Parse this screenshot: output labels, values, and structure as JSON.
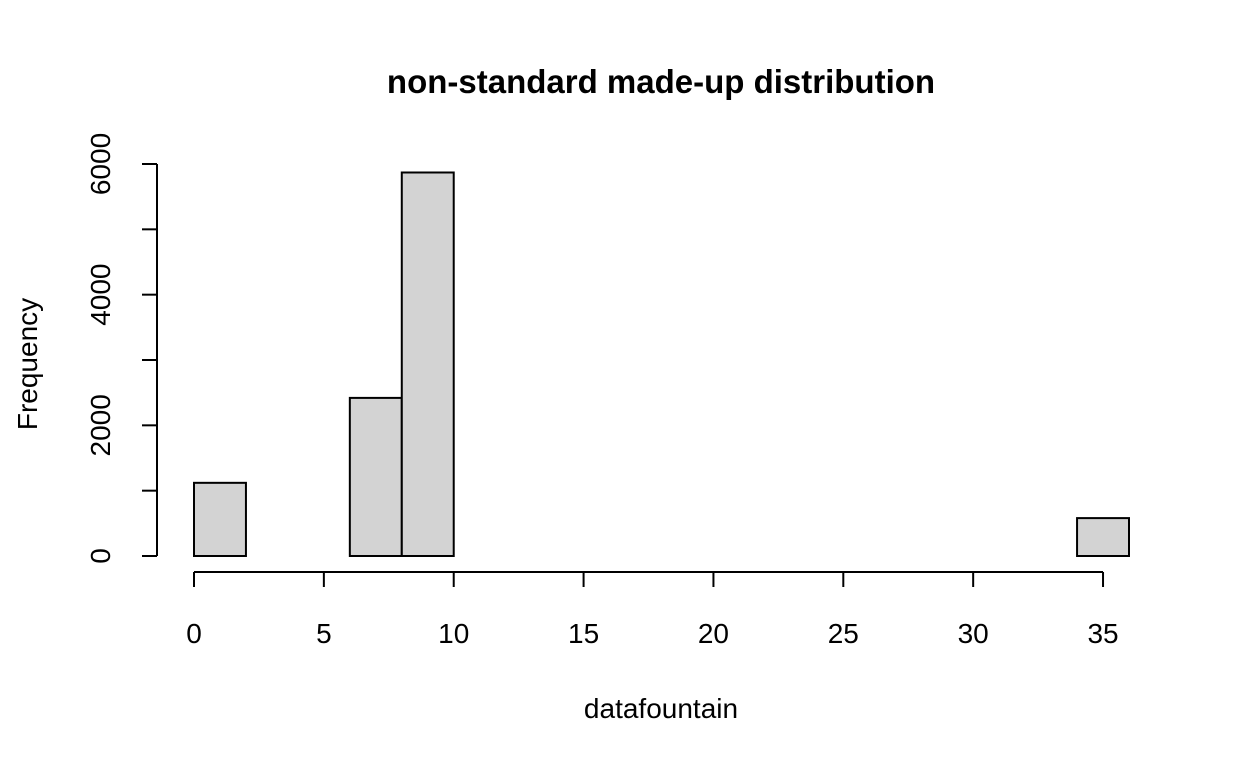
{
  "chart_data": {
    "type": "bar",
    "title": "non-standard made-up distribution",
    "xlabel": "datafountain",
    "ylabel": "Frequency",
    "bins": [
      {
        "from": 0,
        "to": 2,
        "count": 1120
      },
      {
        "from": 2,
        "to": 4,
        "count": 0
      },
      {
        "from": 4,
        "to": 6,
        "count": 0
      },
      {
        "from": 6,
        "to": 8,
        "count": 2420
      },
      {
        "from": 8,
        "to": 10,
        "count": 5870
      },
      {
        "from": 10,
        "to": 12,
        "count": 0
      },
      {
        "from": 12,
        "to": 14,
        "count": 0
      },
      {
        "from": 14,
        "to": 16,
        "count": 0
      },
      {
        "from": 16,
        "to": 18,
        "count": 0
      },
      {
        "from": 18,
        "to": 20,
        "count": 0
      },
      {
        "from": 20,
        "to": 22,
        "count": 0
      },
      {
        "from": 22,
        "to": 24,
        "count": 0
      },
      {
        "from": 24,
        "to": 26,
        "count": 0
      },
      {
        "from": 26,
        "to": 28,
        "count": 0
      },
      {
        "from": 28,
        "to": 30,
        "count": 0
      },
      {
        "from": 30,
        "to": 32,
        "count": 0
      },
      {
        "from": 32,
        "to": 34,
        "count": 0
      },
      {
        "from": 34,
        "to": 36,
        "count": 580
      }
    ],
    "xticks": [
      0,
      5,
      10,
      15,
      20,
      25,
      30,
      35
    ],
    "yticks": [
      0,
      1000,
      2000,
      3000,
      4000,
      5000,
      6000
    ],
    "ytick_labels": [
      "0",
      "",
      "2000",
      "",
      "4000",
      "",
      "6000"
    ],
    "xlim": [
      0,
      36
    ],
    "ylim": [
      0,
      6000
    ],
    "grid": false,
    "bar_fill": "#d3d3d3",
    "bar_stroke": "#000000"
  }
}
